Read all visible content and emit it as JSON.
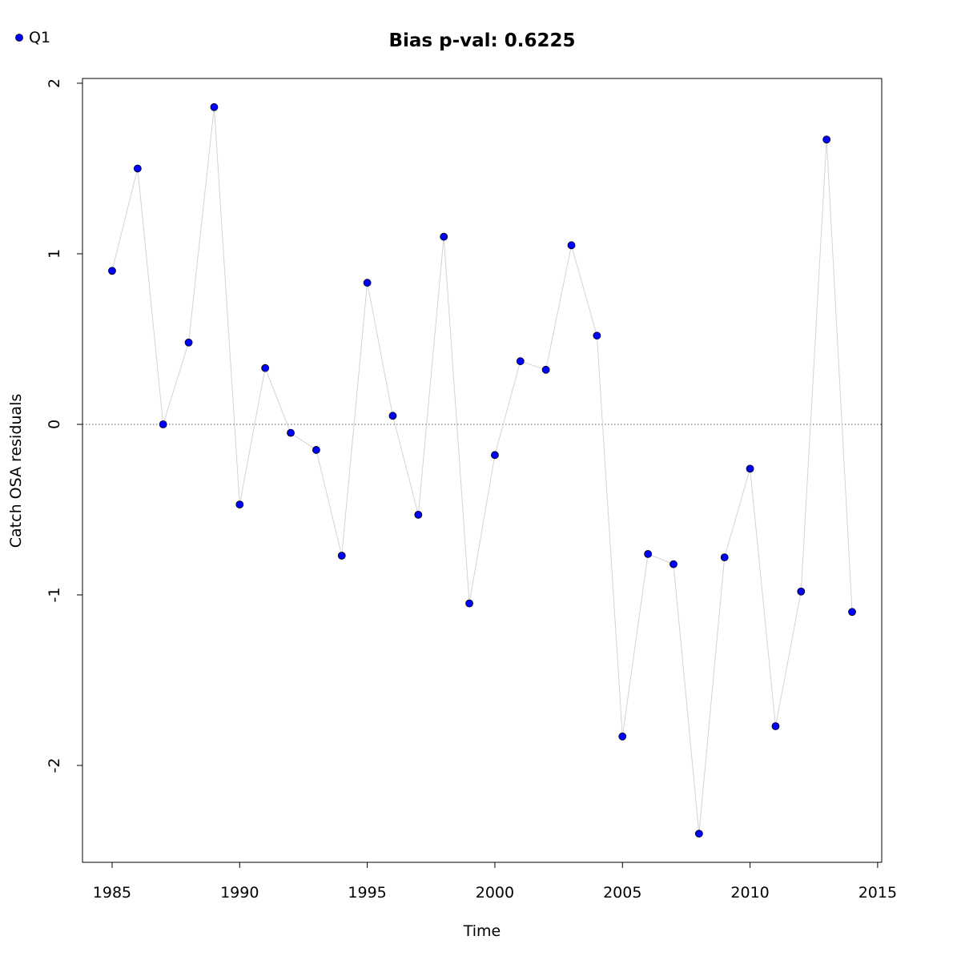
{
  "chart_data": {
    "type": "line",
    "title": "Bias p-val: 0.6225",
    "title_color": "#228b22",
    "xlabel": "Time",
    "ylabel": "Catch OSA residuals",
    "x": [
      1985,
      1986,
      1987,
      1988,
      1989,
      1990,
      1991,
      1992,
      1993,
      1994,
      1995,
      1996,
      1997,
      1998,
      1999,
      2000,
      2001,
      2002,
      2003,
      2004,
      2005,
      2006,
      2007,
      2008,
      2009,
      2010,
      2011,
      2012,
      2013,
      2014
    ],
    "series": [
      {
        "name": "Q1",
        "color": "#0000ff",
        "line_color": "#d3d3d3",
        "values": [
          0.9,
          1.5,
          0.0,
          0.48,
          1.86,
          -0.47,
          0.33,
          -0.05,
          -0.15,
          -0.77,
          0.83,
          0.05,
          -0.53,
          1.1,
          -1.05,
          -0.18,
          0.37,
          0.32,
          1.05,
          0.52,
          -1.83,
          -0.76,
          -0.82,
          -2.4,
          -0.78,
          -0.26,
          -1.77,
          -0.98,
          1.67,
          -1.1
        ]
      }
    ],
    "hline": 0,
    "xlim": [
      1983.84,
      2015.16
    ],
    "ylim": [
      -2.568,
      2.028
    ],
    "xticks": [
      1985,
      1990,
      1995,
      2000,
      2005,
      2010,
      2015
    ],
    "yticks": [
      -2,
      -1,
      0,
      1,
      2
    ],
    "legend": "top-left"
  }
}
